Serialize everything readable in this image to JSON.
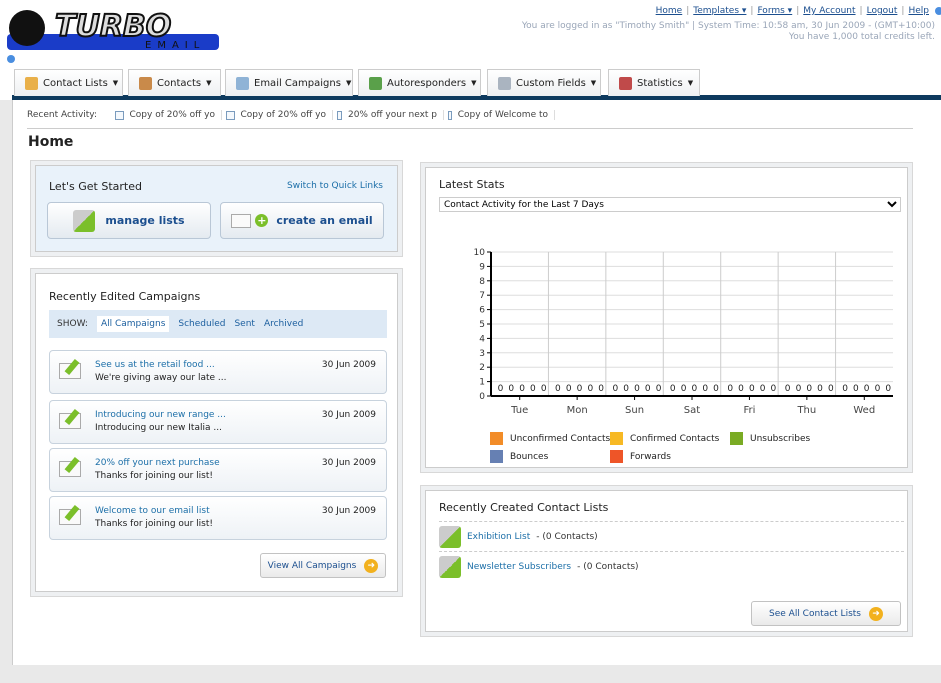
{
  "brand": {
    "logo_text": "TURBO",
    "logo_sub": "EMAIL"
  },
  "top_links": [
    {
      "label": "Home"
    },
    {
      "label": "Templates ▾"
    },
    {
      "label": "Forms ▾"
    },
    {
      "label": "My Account"
    },
    {
      "label": "Logout"
    },
    {
      "label": "Help"
    }
  ],
  "user_info": {
    "line1": "You are logged in as \"Timothy Smith\" | System Time: 10:58 am, 30 Jun 2009 - (GMT+10:00)",
    "line2": "You have 1,000 total credits left."
  },
  "nav": [
    {
      "label": "Contact Lists",
      "icon": "contact-lists-icon",
      "color": "#e9b04a"
    },
    {
      "label": "Contacts",
      "icon": "contacts-icon",
      "color": "#c98a4a"
    },
    {
      "label": "Email Campaigns",
      "icon": "envelope-icon",
      "color": "#8fb3d6"
    },
    {
      "label": "Autoresponders",
      "icon": "autoresponder-icon",
      "color": "#5aa04a"
    },
    {
      "label": "Custom Fields",
      "icon": "custom-fields-icon",
      "color": "#aab4c0"
    },
    {
      "label": "Statistics",
      "icon": "bar-chart-icon",
      "color": "#c04a4a"
    }
  ],
  "recent": {
    "label": "Recent Activity:",
    "items": [
      "Copy of 20% off yo",
      "Copy of 20% off yo",
      "20% off your next p",
      "Copy of Welcome to"
    ]
  },
  "page_title": "Home",
  "get_started": {
    "title": "Let's Get Started",
    "switch": "Switch to Quick Links",
    "manage": "manage lists",
    "create": "create an email"
  },
  "campaigns": {
    "title": "Recently Edited Campaigns",
    "show": "SHOW:",
    "filters": [
      "All Campaigns",
      "Scheduled",
      "Sent",
      "Archived"
    ],
    "items": [
      {
        "title": "See us at the retail food ...",
        "sub": "We're giving away our late ...",
        "date": "30 Jun 2009"
      },
      {
        "title": "Introducing our new range ...",
        "sub": "Introducing our new Italia ...",
        "date": "30 Jun 2009"
      },
      {
        "title": "20% off your next purchase",
        "sub": "Thanks for joining our list!",
        "date": "30 Jun 2009"
      },
      {
        "title": "Welcome to our email list",
        "sub": "Thanks for joining our list!",
        "date": "30 Jun 2009"
      }
    ],
    "view_all": "View All Campaigns"
  },
  "stats": {
    "title": "Latest Stats",
    "select": "Contact Activity for the Last 7 Days"
  },
  "chart_data": {
    "type": "bar",
    "categories": [
      "Tue",
      "Mon",
      "Sun",
      "Sat",
      "Fri",
      "Thu",
      "Wed"
    ],
    "ylim": [
      0,
      10
    ],
    "yticks": [
      "0",
      "1",
      "2",
      "3",
      "4",
      "5",
      "6",
      "7",
      "8",
      "9",
      "10"
    ],
    "grid": true,
    "legend_position": "bottom",
    "series": [
      {
        "name": "Unconfirmed Contacts",
        "color": "#f28c28",
        "values": [
          0,
          0,
          0,
          0,
          0,
          0,
          0
        ]
      },
      {
        "name": "Confirmed Contacts",
        "color": "#f7b924",
        "values": [
          0,
          0,
          0,
          0,
          0,
          0,
          0
        ]
      },
      {
        "name": "Unsubscribes",
        "color": "#7aab24",
        "values": [
          0,
          0,
          0,
          0,
          0,
          0,
          0
        ]
      },
      {
        "name": "Bounces",
        "color": "#6680b3",
        "values": [
          0,
          0,
          0,
          0,
          0,
          0,
          0
        ]
      },
      {
        "name": "Forwards",
        "color": "#ee5528",
        "values": [
          0,
          0,
          0,
          0,
          0,
          0,
          0
        ]
      }
    ]
  },
  "lists": {
    "title": "Recently Created Contact Lists",
    "items": [
      {
        "name": "Exhibition List",
        "count": " - (0 Contacts)"
      },
      {
        "name": "Newsletter Subscribers",
        "count": " - (0 Contacts)"
      }
    ],
    "see_all": "See All Contact Lists"
  }
}
